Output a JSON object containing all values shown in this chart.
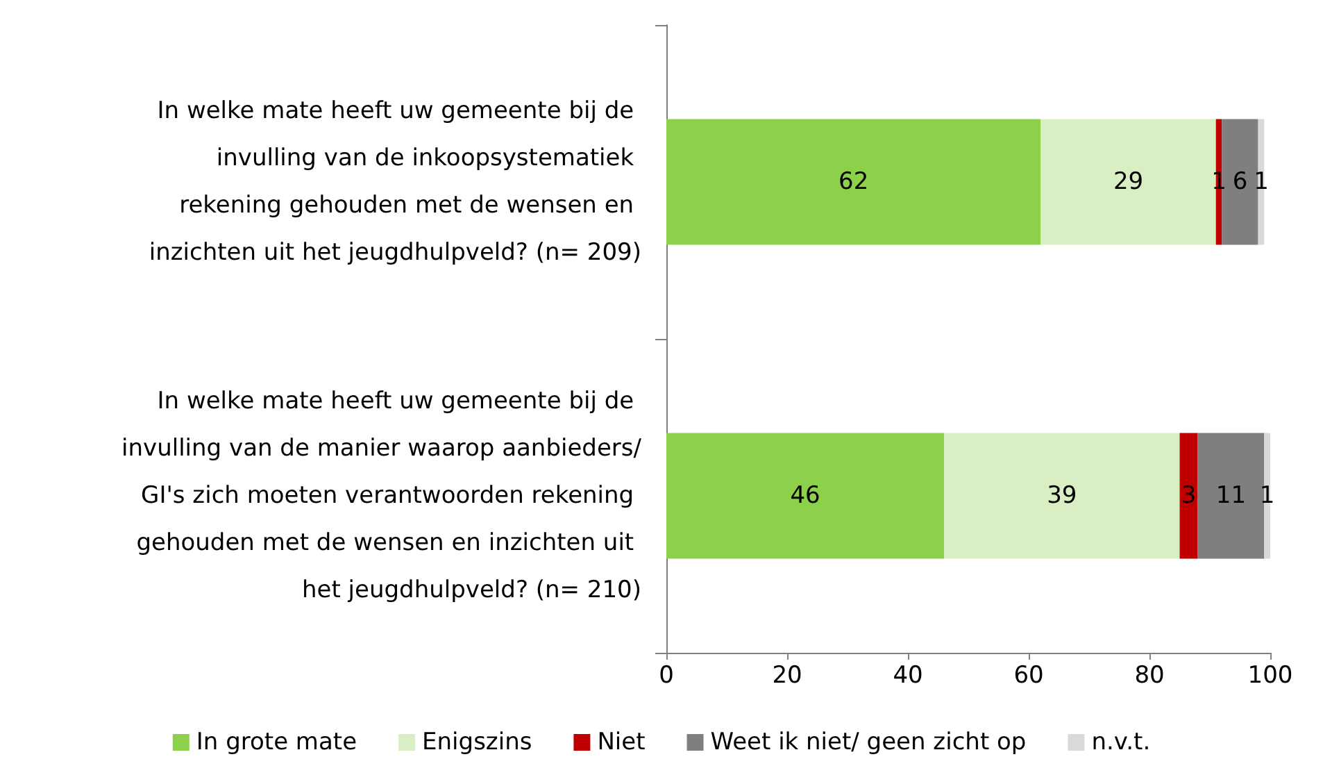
{
  "chart_data": {
    "type": "bar",
    "orientation": "horizontal",
    "stacked": true,
    "data_labels": true,
    "legend": "bottom",
    "grid": false,
    "categories": [
      "In welke mate heeft uw gemeente bij de invulling van de inkoopsystematiek rekening gehouden met de wensen en inzichten uit het jeugdhulpveld? (n= 209)",
      "In welke mate heeft uw gemeente bij de invulling van de manier waarop aanbieders/GI's zich moeten verantwoorden rekening gehouden met de wensen en inzichten uit het jeugdhulpveld? (n= 210)"
    ],
    "series": [
      {
        "name": "In grote mate",
        "color": "#8dd04a",
        "values": [
          62,
          46
        ]
      },
      {
        "name": "Enigszins",
        "color": "#d8efc4",
        "values": [
          29,
          39
        ]
      },
      {
        "name": "Niet",
        "color": "#c00000",
        "values": [
          1,
          3
        ]
      },
      {
        "name": "Weet ik niet/ geen zicht op",
        "color": "#7f7f7f",
        "values": [
          6,
          11
        ]
      },
      {
        "name": "n.v.t.",
        "color": "#d9d9d9",
        "values": [
          1,
          1
        ]
      }
    ],
    "xlim": [
      0,
      100
    ],
    "xticks": [
      0,
      20,
      40,
      60,
      80,
      100
    ]
  }
}
